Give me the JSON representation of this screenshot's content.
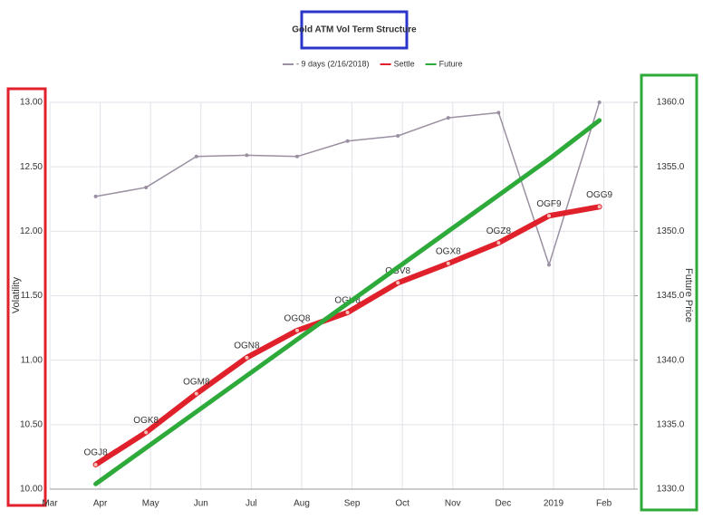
{
  "chart_data": {
    "type": "line",
    "title": "Gold ATM Vol Term Structure",
    "y_label": "Volatility",
    "y2_label": "Future Price",
    "categories": [
      "Mar",
      "Apr",
      "May",
      "Jun",
      "Jul",
      "Aug",
      "Sep",
      "Oct",
      "Nov",
      "Dec",
      "2019",
      "Feb"
    ],
    "ylim": [
      10,
      13
    ],
    "yticks": [
      {
        "value": 10,
        "label": "10.00"
      },
      {
        "value": 10.5,
        "label": "10.50"
      },
      {
        "value": 11,
        "label": "11.00"
      },
      {
        "value": 11.5,
        "label": "11.50"
      },
      {
        "value": 12,
        "label": "12.00"
      },
      {
        "value": 12.5,
        "label": "12.50"
      },
      {
        "value": 13,
        "label": "13.00"
      }
    ],
    "y2lim": [
      1330,
      1360
    ],
    "y2ticks": [
      {
        "value": 1330,
        "label": "1330.0"
      },
      {
        "value": 1335,
        "label": "1335.0"
      },
      {
        "value": 1340,
        "label": "1340.0"
      },
      {
        "value": 1345,
        "label": "1345.0"
      },
      {
        "value": 1350,
        "label": "1350.0"
      },
      {
        "value": 1355,
        "label": "1355.0"
      },
      {
        "value": 1360,
        "label": "1360.0"
      }
    ],
    "grid": true,
    "series": [
      {
        "name": "- 9 days (2/16/2018)",
        "color": "#9a90a2",
        "line_width": 1.5,
        "markers": true,
        "values": [
          null,
          12.27,
          12.34,
          12.58,
          12.59,
          12.58,
          12.7,
          12.74,
          12.88,
          12.92,
          11.74,
          13.0
        ]
      },
      {
        "name": "Settle",
        "color": "#e0202a",
        "line_width": 6,
        "markers": true,
        "values": [
          null,
          10.19,
          10.44,
          10.74,
          11.02,
          11.23,
          11.37,
          11.6,
          11.75,
          11.91,
          12.12,
          12.19
        ],
        "point_labels": [
          null,
          "OGJ8",
          "OGK8",
          "OGM8",
          "OGN8",
          "OGQ8",
          "OGU8",
          "OGV8",
          "OGX8",
          "OGZ8",
          "OGF9",
          "OGG9"
        ]
      },
      {
        "name": "Future",
        "color": "#2eaa3a",
        "line_width": 5,
        "markers": false,
        "axis": "y2",
        "values": [
          null,
          1330.4,
          1333.2,
          1336.0,
          1338.8,
          1341.6,
          1344.4,
          1347.2,
          1350.0,
          1352.8,
          1355.6,
          1358.6
        ]
      }
    ]
  }
}
